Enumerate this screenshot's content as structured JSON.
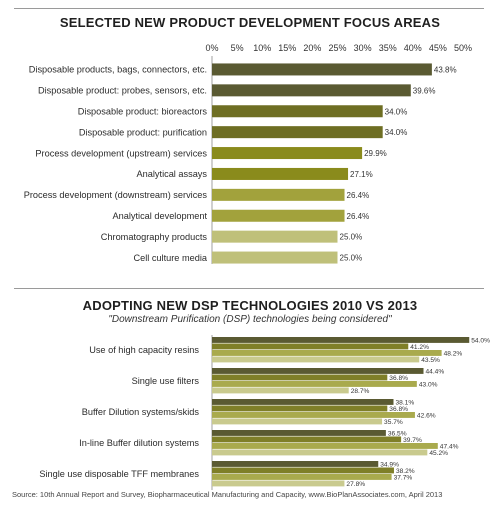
{
  "chart_data": [
    {
      "type": "bar",
      "orientation": "horizontal",
      "title": "SELECTED NEW PRODUCT DEVELOPMENT FOCUS AREAS",
      "xlim": [
        0,
        50
      ],
      "xticks": [
        "0%",
        "5%",
        "10%",
        "15%",
        "20%",
        "25%",
        "30%",
        "35%",
        "40%",
        "45%",
        "50%"
      ],
      "categories": [
        "Disposable products, bags, connectors, etc.",
        "Disposable product: probes, sensors, etc.",
        "Disposable product: bioreactors",
        "Disposable product: purification",
        "Process development (upstream) services",
        "Analytical assays",
        "Process development (downstream) services",
        "Analytical development",
        "Chromatography products",
        "Cell culture media"
      ],
      "values": [
        43.8,
        39.6,
        34.0,
        34.0,
        29.9,
        27.1,
        26.4,
        26.4,
        25.0,
        25.0
      ],
      "value_labels": [
        "43.8%",
        "39.6%",
        "34.0%",
        "34.0%",
        "29.9%",
        "27.1%",
        "26.4%",
        "26.4%",
        "25.0%",
        "25.0%"
      ],
      "colors": [
        "#5a5a32",
        "#5a5a32",
        "#6e6e23",
        "#6e6e23",
        "#8a8b1c",
        "#8a8b1c",
        "#a2a23c",
        "#a2a23c",
        "#bfc07a",
        "#bfc07a"
      ],
      "legend": "none"
    },
    {
      "type": "bar",
      "orientation": "horizontal",
      "title": "ADOPTING NEW DSP TECHNOLOGIES 2010 VS 2013",
      "subtitle": "\"Downstream Purification (DSP) technologies being considered\"",
      "xlim": [
        0,
        55
      ],
      "categories": [
        "Use of high capacity resins",
        "Single use filters",
        "Buffer Dilution systems/skids",
        "In-line Buffer dilution systems",
        "Single use disposable TFF membranes"
      ],
      "series": [
        {
          "values": [
            54.0,
            44.4,
            38.1,
            36.5,
            34.9
          ],
          "labels": [
            "54.0%",
            "44.4%",
            "38.1%",
            "36.5%",
            "34.9%"
          ],
          "color": "#5a5a32"
        },
        {
          "values": [
            41.2,
            36.8,
            36.8,
            39.7,
            38.2
          ],
          "labels": [
            "41.2%",
            "36.8%",
            "36.8%",
            "39.7%",
            "38.2%"
          ],
          "color": "#7f7f28"
        },
        {
          "values": [
            48.2,
            43.0,
            42.6,
            47.4,
            37.7
          ],
          "labels": [
            "48.2%",
            "43.0%",
            "42.6%",
            "47.4%",
            "37.7%"
          ],
          "color": "#a9aa4d"
        },
        {
          "values": [
            43.5,
            28.7,
            35.7,
            45.2,
            27.8
          ],
          "labels": [
            "43.5%",
            "28.7%",
            "35.7%",
            "45.2%",
            "27.8%"
          ],
          "color": "#c9ca8e"
        }
      ],
      "legend": "none"
    }
  ],
  "source": "Source: 10th Annual Report and Survey, Biopharmaceutical Manufacturing and Capacity, www.BioPlanAssociates.com, April 2013"
}
